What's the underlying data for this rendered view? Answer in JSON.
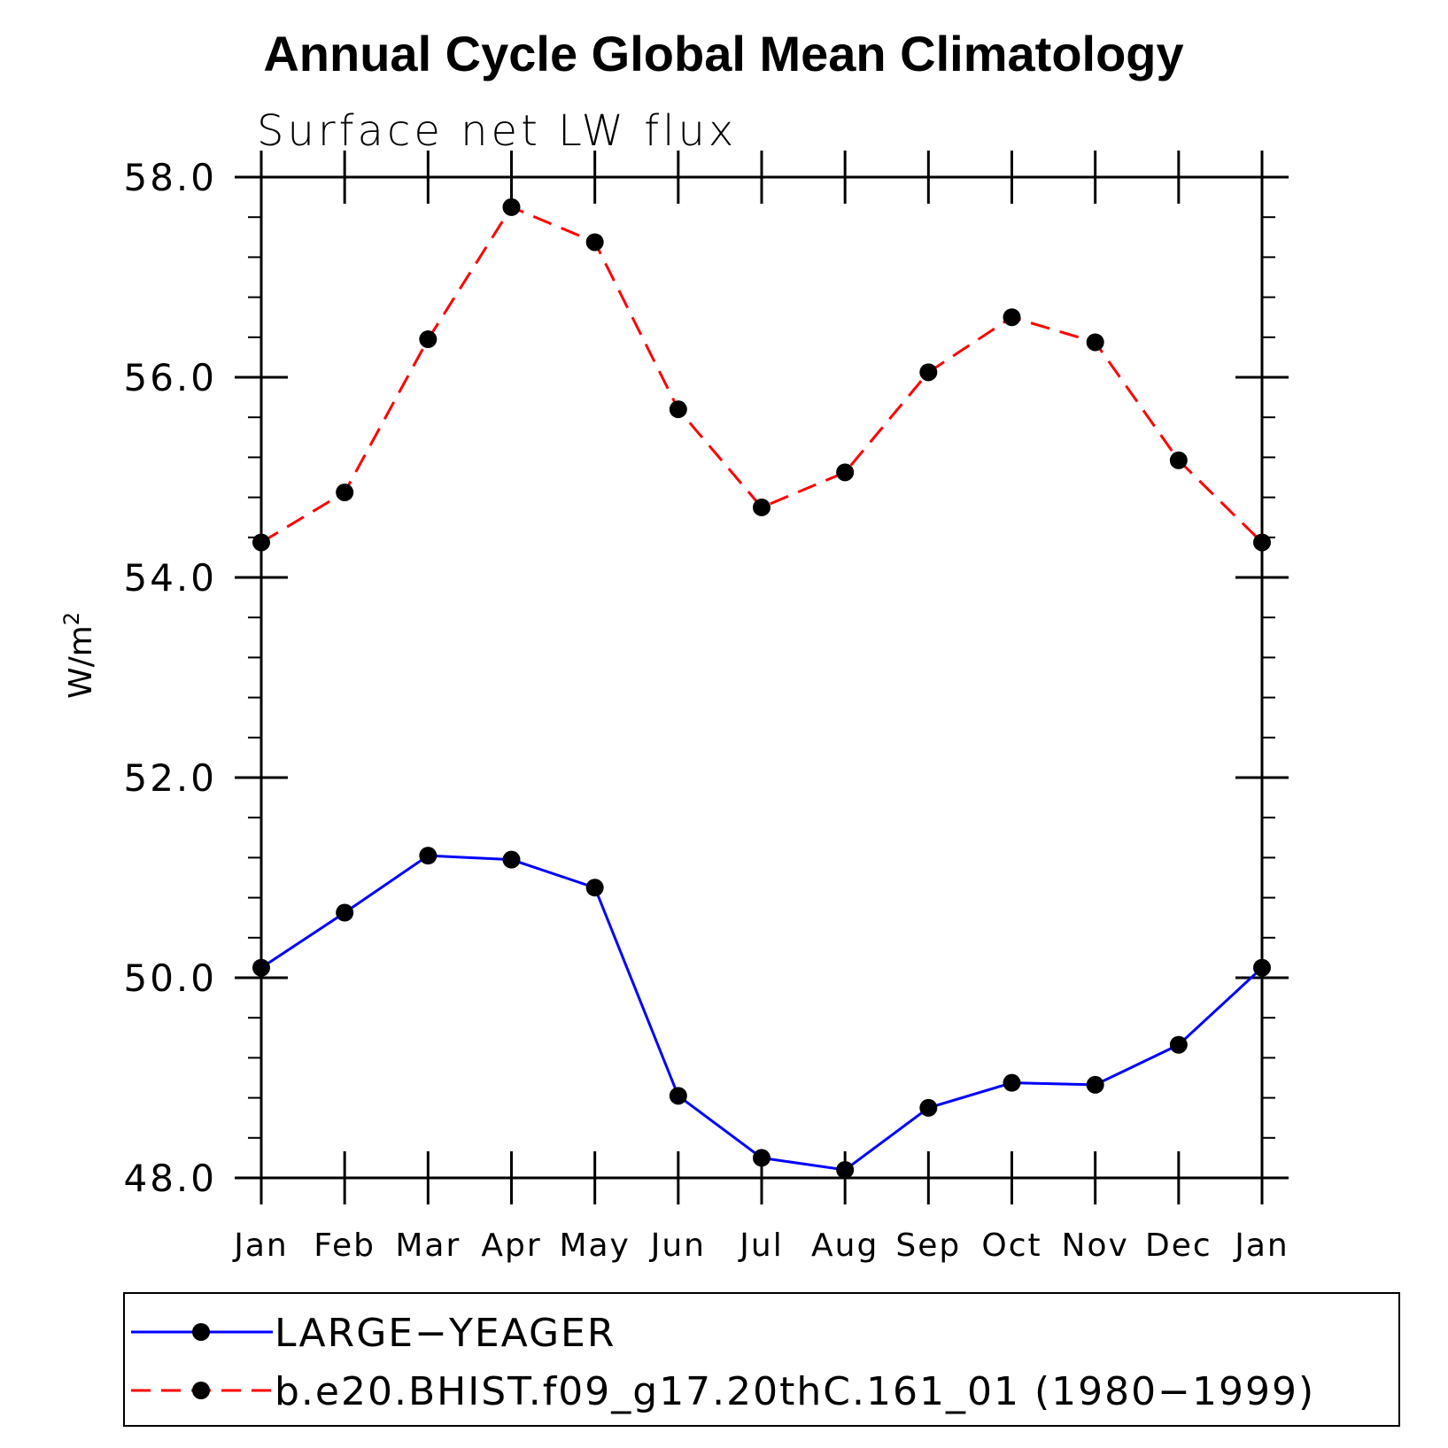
{
  "chart_data": {
    "type": "line",
    "title": "Annual Cycle Global Mean Climatology",
    "subtitle": "Surface net LW flux",
    "ylabel_base": "W/m",
    "ylabel_sup": "2",
    "xlabel": "",
    "categories": [
      "Jan",
      "Feb",
      "Mar",
      "Apr",
      "May",
      "Jun",
      "Jul",
      "Aug",
      "Sep",
      "Oct",
      "Nov",
      "Dec",
      "Jan"
    ],
    "ylim": [
      48.0,
      58.0
    ],
    "yticks": [
      "48.0",
      "50.0",
      "52.0",
      "54.0",
      "56.0",
      "58.0"
    ],
    "grid": false,
    "legend_position": "bottom",
    "series": [
      {
        "name": "LARGE−YEAGER",
        "color": "#0000ff",
        "line_style": "solid",
        "marker": "filled-circle",
        "values": [
          50.1,
          50.65,
          51.22,
          51.18,
          50.9,
          48.82,
          48.2,
          48.08,
          48.7,
          48.95,
          48.93,
          49.33,
          50.1
        ]
      },
      {
        "name": "b.e20.BHIST.f09_g17.20thC.161_01 (1980−1999)",
        "color": "#ff0000",
        "line_style": "dashed",
        "marker": "filled-circle",
        "values": [
          54.35,
          54.85,
          56.38,
          57.7,
          57.35,
          55.68,
          54.7,
          55.05,
          56.05,
          56.6,
          56.35,
          55.17,
          54.35
        ]
      }
    ]
  }
}
